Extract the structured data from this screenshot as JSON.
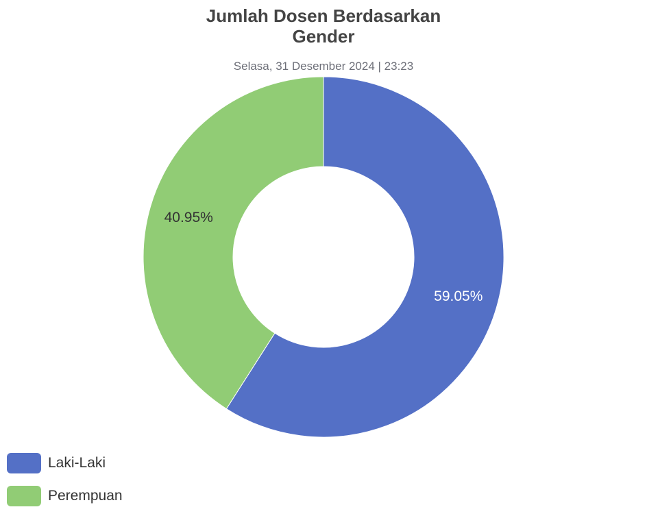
{
  "chart_data": {
    "type": "pie",
    "title_lines": [
      "Jumlah Dosen Berdasarkan",
      "Gender"
    ],
    "subtitle": "Selasa, 31 Desember 2024 | 23:23",
    "slices": [
      {
        "name": "Laki-Laki",
        "value": 59.05,
        "label": "59.05%",
        "color": "#5470c6",
        "label_color": "#ffffff"
      },
      {
        "name": "Perempuan",
        "value": 40.95,
        "label": "40.95%",
        "color": "#91cc75",
        "label_color": "#333333"
      }
    ],
    "legend_position": "bottom-left",
    "donut": true
  }
}
